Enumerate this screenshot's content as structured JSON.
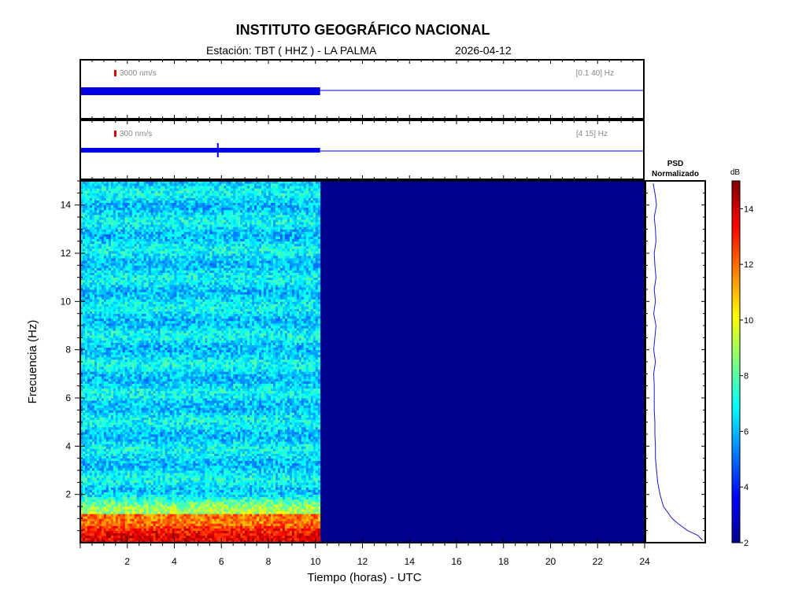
{
  "header": {
    "title": "INSTITUTO GEOGRÁFICO NACIONAL",
    "station_label": "Estación:  TBT ( HHZ ) - LA PALMA",
    "date": "2026-04-12"
  },
  "trace1": {
    "scale_label": "3000 nm/s",
    "band_label": "[0.1 40] Hz",
    "data_end_hours": 10.2
  },
  "trace2": {
    "scale_label": "300 nm/s",
    "band_label": "[4 15] Hz",
    "data_end_hours": 10.2
  },
  "psd": {
    "title_line1": "PSD",
    "title_line2": "Normalizado"
  },
  "colorbar": {
    "unit": "dB",
    "ticks": [
      "2",
      "4",
      "6",
      "8",
      "10",
      "12",
      "14"
    ],
    "range": [
      2,
      15
    ]
  },
  "colors": {
    "frame": "#000000",
    "trace": "#0000e0",
    "scale_marker": "#dd0000",
    "empty_spectrogram": "#00008f"
  },
  "chart_data": {
    "type": "heatmap",
    "title": "INSTITUTO GEOGRÁFICO NACIONAL",
    "xlabel": "Tiempo (horas) - UTC",
    "ylabel": "Frecuencia  (Hz)",
    "xlim": [
      0,
      24
    ],
    "ylim": [
      0,
      15
    ],
    "x_ticks": [
      "2",
      "4",
      "6",
      "8",
      "10",
      "12",
      "14",
      "16",
      "18",
      "20",
      "22",
      "24"
    ],
    "y_ticks": [
      "2",
      "4",
      "6",
      "8",
      "10",
      "12",
      "14"
    ],
    "data_end_hours": 10.2,
    "clim_db": [
      2,
      15
    ],
    "background_level_db": 6.5,
    "low_frequency_band": {
      "freq_hz": [
        0,
        1.2
      ],
      "level_db": 12
    },
    "psd_normalized": {
      "freq_hz": [
        0.1,
        0.3,
        0.5,
        0.8,
        1.0,
        1.5,
        2.0,
        2.5,
        3.0,
        3.5,
        4.0,
        4.5,
        5.0,
        5.5,
        6.0,
        6.5,
        7.0,
        7.5,
        8.0,
        8.5,
        9.0,
        9.5,
        10.0,
        10.5,
        11.0,
        11.5,
        12.0,
        12.5,
        13.0,
        13.5,
        14.0,
        14.5,
        14.9
      ],
      "value": [
        0.98,
        0.9,
        0.72,
        0.55,
        0.45,
        0.3,
        0.24,
        0.2,
        0.18,
        0.16,
        0.16,
        0.15,
        0.15,
        0.14,
        0.14,
        0.14,
        0.13,
        0.16,
        0.13,
        0.15,
        0.17,
        0.13,
        0.16,
        0.14,
        0.17,
        0.15,
        0.14,
        0.17,
        0.16,
        0.14,
        0.18,
        0.15,
        0.12
      ]
    }
  }
}
